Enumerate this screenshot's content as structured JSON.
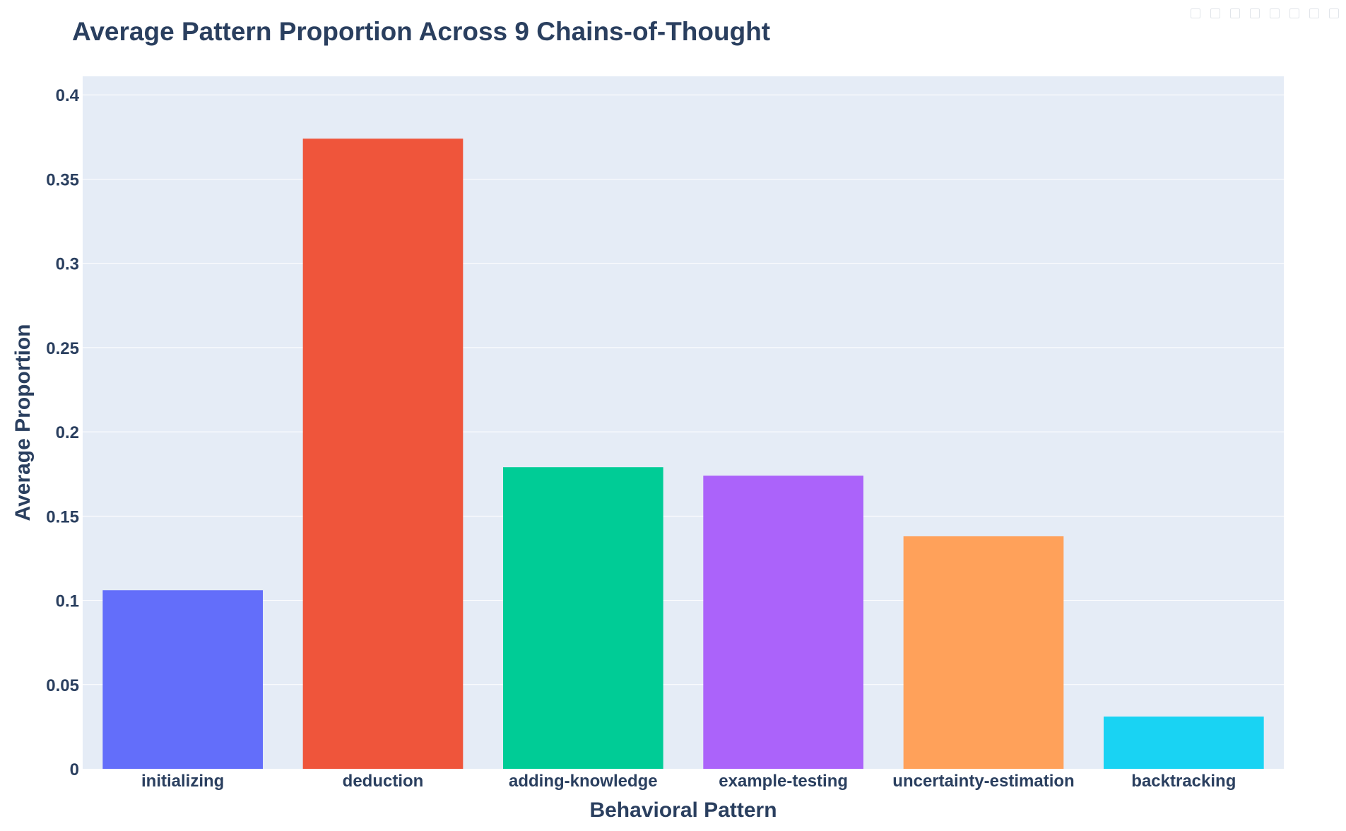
{
  "chart_data": {
    "type": "bar",
    "title": "Average Pattern Proportion Across 9 Chains-of-Thought",
    "xlabel": "Behavioral Pattern",
    "ylabel": "Average Proportion",
    "categories": [
      "initializing",
      "deduction",
      "adding-knowledge",
      "example-testing",
      "uncertainty-estimation",
      "backtracking"
    ],
    "values": [
      0.106,
      0.374,
      0.179,
      0.174,
      0.138,
      0.031
    ],
    "colors": [
      "#636efa",
      "#ef553b",
      "#00cc96",
      "#ab63fa",
      "#ffa15a",
      "#19d3f3"
    ],
    "ylim": [
      0,
      0.411
    ],
    "yticks": [
      0,
      0.05,
      0.1,
      0.15,
      0.2,
      0.25,
      0.3,
      0.35,
      0.4
    ],
    "ytick_labels": [
      "0",
      "0.05",
      "0.1",
      "0.15",
      "0.2",
      "0.25",
      "0.3",
      "0.35",
      "0.4"
    ],
    "grid": true,
    "legend": "none",
    "plot_bg": "#e5ecf6",
    "text_color": "#2a3f5f"
  }
}
